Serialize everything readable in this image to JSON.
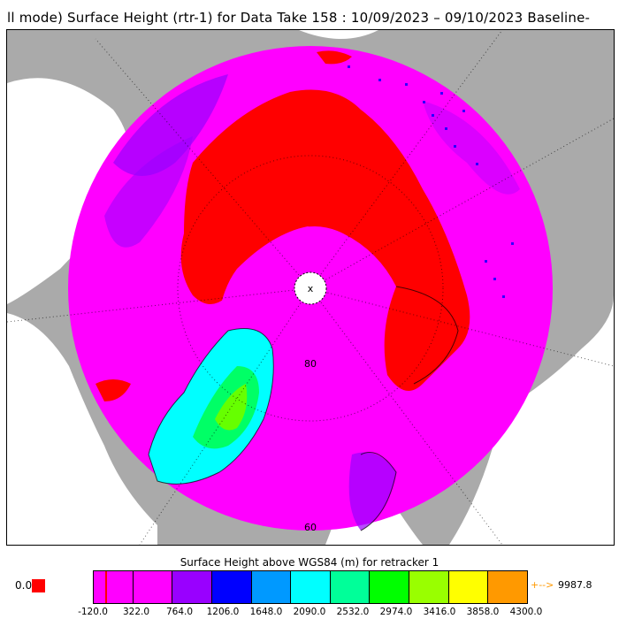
{
  "title": "ll mode) Surface Height (rtr-1) for Data Take 158 : 10/09/2023 – 09/10/2023 Baseline-",
  "map": {
    "latitude_labels": [
      "80",
      "60"
    ],
    "pole_marker": "x",
    "colors": {
      "land": "#aaaaaa",
      "magenta": "#ff00ff",
      "red": "#ff0000",
      "violet": "#9900ff",
      "blue": "#0000ff",
      "green": "#00ff66"
    }
  },
  "colorbar": {
    "title": "Surface Height above WGS84 (m) for retracker 1",
    "colors": [
      "#ff00ff",
      "#ff00ff",
      "#9900ff",
      "#0000ff",
      "#0099ff",
      "#00ffff",
      "#00ff99",
      "#00ff00",
      "#99ff00",
      "#ffff00",
      "#ff9900"
    ],
    "tick_labels": [
      "-120.0",
      "322.0",
      "764.0",
      "1206.0",
      "1648.0",
      "2090.0",
      "2532.0",
      "2974.0",
      "3416.0",
      "3858.0",
      "4300.0"
    ],
    "zero_label": "0.0",
    "zero_color": "#ff0000",
    "over_arrow": "+-->",
    "over_label": "9987.8"
  }
}
